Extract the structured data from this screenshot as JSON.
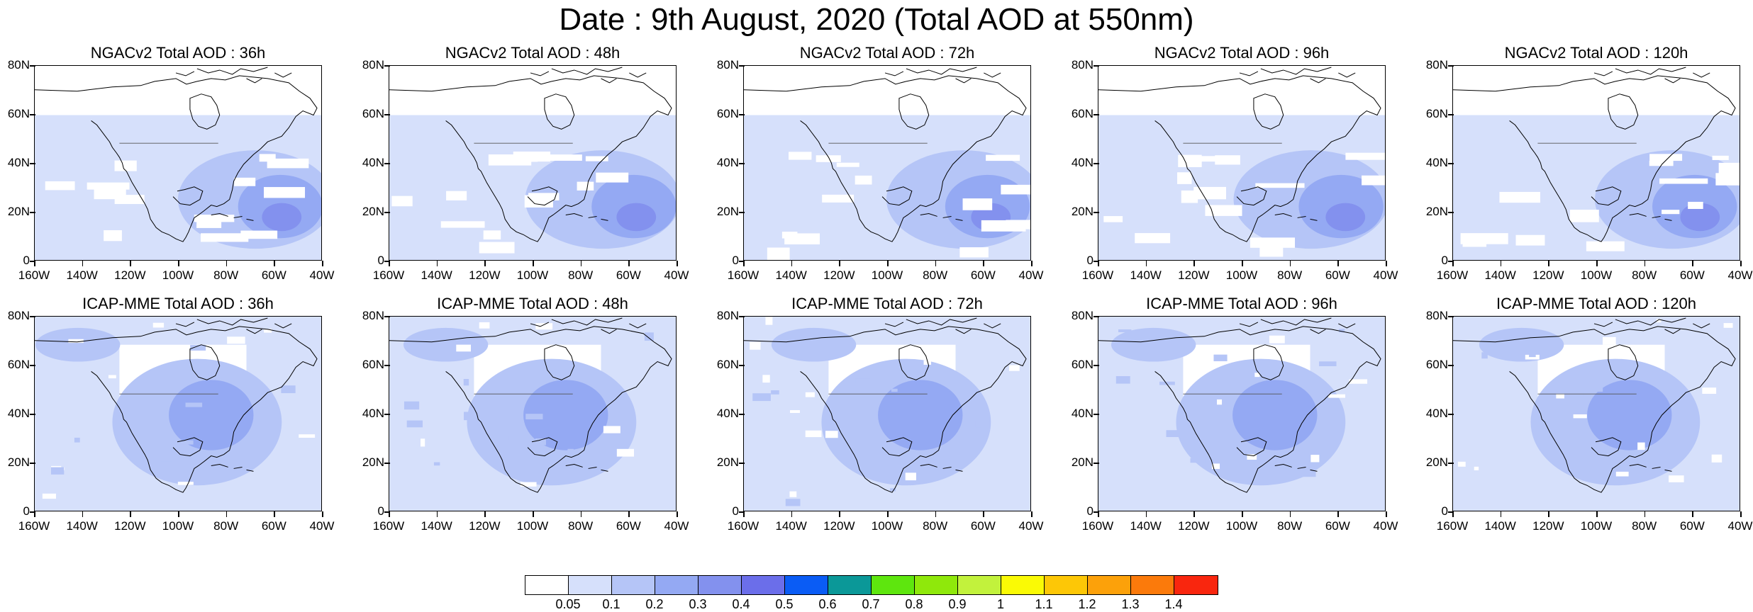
{
  "title": "Date : 9th August, 2020 (Total AOD at 550nm)",
  "panels": [
    {
      "title": "NGACv2 Total AOD : 36h"
    },
    {
      "title": "NGACv2 Total AOD : 48h"
    },
    {
      "title": "NGACv2 Total AOD : 72h"
    },
    {
      "title": "NGACv2 Total AOD : 96h"
    },
    {
      "title": "NGACv2 Total AOD : 120h"
    },
    {
      "title": "ICAP-MME Total AOD : 36h"
    },
    {
      "title": "ICAP-MME Total AOD : 48h"
    },
    {
      "title": "ICAP-MME Total AOD : 72h"
    },
    {
      "title": "ICAP-MME Total AOD : 96h"
    },
    {
      "title": "ICAP-MME Total AOD : 120h"
    }
  ],
  "axes": {
    "y_labels": [
      "80N",
      "60N",
      "40N",
      "20N",
      "0"
    ],
    "x_labels": [
      "160W",
      "140W",
      "120W",
      "100W",
      "80W",
      "60W",
      "40W"
    ]
  },
  "colorbar": {
    "colors": [
      "#ffffff",
      "#d6e0fb",
      "#b5c5f7",
      "#94a9f3",
      "#8391ee",
      "#6b6eea",
      "#0a5cf5",
      "#0b9898",
      "#5ee60e",
      "#8fe80b",
      "#c2f23c",
      "#fafa05",
      "#fdc706",
      "#fca10a",
      "#fb7a0b",
      "#f9260e"
    ],
    "labels": [
      "0.05",
      "0.1",
      "0.2",
      "0.3",
      "0.4",
      "0.5",
      "0.6",
      "0.7",
      "0.8",
      "0.9",
      "1",
      "1.1",
      "1.2",
      "1.3",
      "1.4"
    ]
  }
}
